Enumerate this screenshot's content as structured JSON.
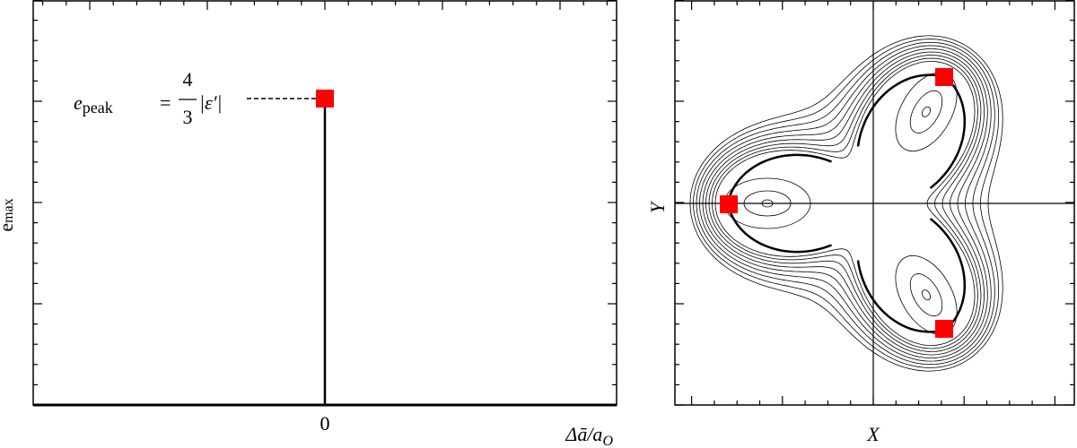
{
  "panels": [
    {
      "ylabel": "e",
      "ylabel_sub": "max",
      "xlabel": "Δā/a",
      "xlabel_sub": "O",
      "xtick": "0",
      "annotation": {
        "lhs": "e",
        "lhs_sub": "peak",
        "eq": "=",
        "num": "4",
        "den": "3",
        "rhs": "|ε′|"
      }
    },
    {
      "xlabel": "X",
      "ylabel": "Y"
    }
  ]
}
